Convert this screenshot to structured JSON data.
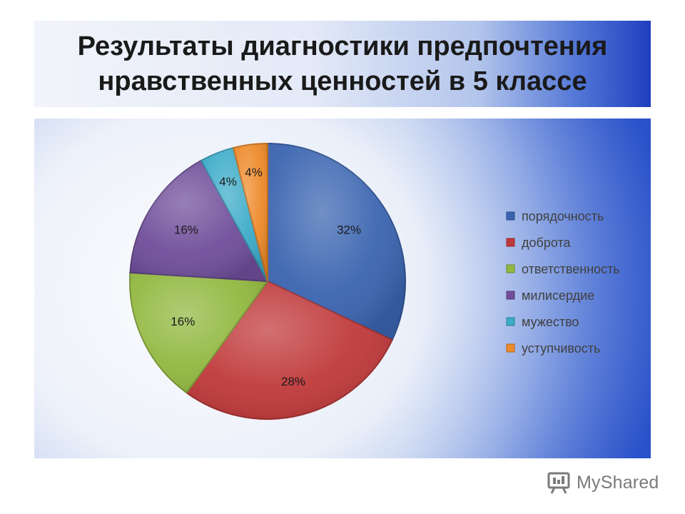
{
  "title": {
    "line1": "Результаты диагностики предпочтения",
    "line2": "нравственных ценностей в 5 классе"
  },
  "chart_data": {
    "type": "pie",
    "title": "",
    "categories": [
      "порядочность",
      "доброта",
      "ответственность",
      "милисердие",
      "мужество",
      "уступчивость"
    ],
    "values": [
      32,
      28,
      16,
      16,
      4,
      4
    ],
    "labels": [
      "32%",
      "28%",
      "16%",
      "16%",
      "4%",
      "4%"
    ],
    "colors": [
      "#3a64b0",
      "#c0393a",
      "#92b840",
      "#6f4e9a",
      "#3cabc8",
      "#ee8a2a"
    ],
    "legend_position": "right"
  },
  "watermark": {
    "text": "MyShared"
  }
}
